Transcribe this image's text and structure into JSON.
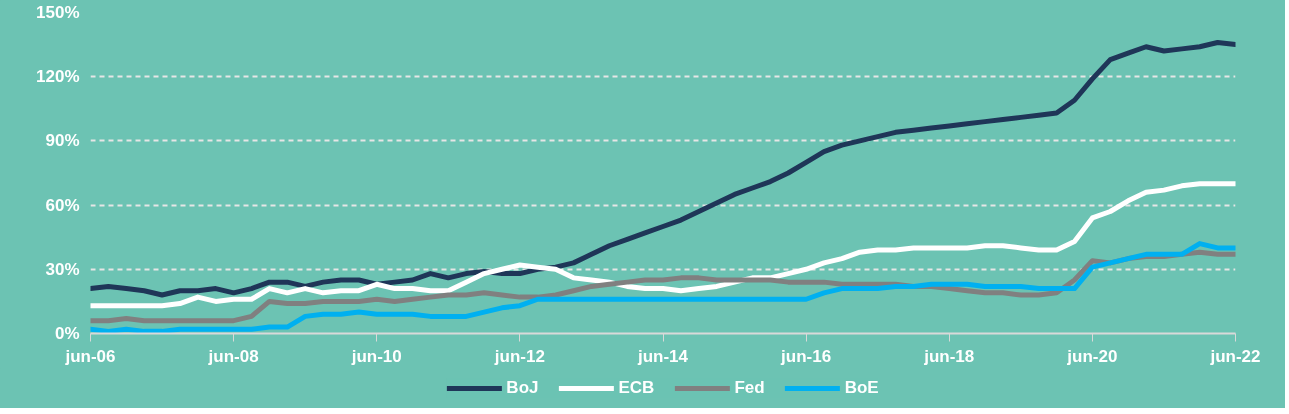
{
  "chart_data": {
    "type": "line",
    "categories": [
      "jun-06",
      null,
      null,
      null,
      null,
      null,
      null,
      null,
      "jun-08",
      null,
      null,
      null,
      null,
      null,
      null,
      null,
      "jun-10",
      null,
      null,
      null,
      null,
      null,
      null,
      null,
      "jun-12",
      null,
      null,
      null,
      null,
      null,
      null,
      null,
      "jun-14",
      null,
      null,
      null,
      null,
      null,
      null,
      null,
      "jun-16",
      null,
      null,
      null,
      null,
      null,
      null,
      null,
      "jun-18",
      null,
      null,
      null,
      null,
      null,
      null,
      null,
      "jun-20",
      null,
      null,
      null,
      null,
      null,
      null,
      null,
      "jun-22"
    ],
    "series": [
      {
        "name": "BoJ",
        "color": "#1f3658",
        "values": [
          21,
          22,
          21,
          20,
          18,
          20,
          20,
          21,
          19,
          21,
          24,
          24,
          22,
          24,
          25,
          25,
          23,
          24,
          25,
          28,
          26,
          28,
          29,
          28,
          28,
          30,
          31,
          33,
          37,
          41,
          44,
          47,
          50,
          53,
          57,
          61,
          65,
          68,
          71,
          75,
          80,
          85,
          88,
          90,
          92,
          94,
          95,
          96,
          97,
          98,
          99,
          100,
          101,
          102,
          103,
          109,
          119,
          128,
          131,
          134,
          132,
          133,
          134,
          136,
          135
        ]
      },
      {
        "name": "ECB",
        "color": "#ffffff",
        "values": [
          13,
          13,
          13,
          13,
          13,
          14,
          17,
          15,
          16,
          16,
          21,
          19,
          21,
          19,
          20,
          20,
          23,
          21,
          21,
          20,
          20,
          24,
          28,
          30,
          32,
          31,
          30,
          26,
          25,
          24,
          22,
          21,
          21,
          20,
          21,
          22,
          24,
          26,
          26,
          28,
          30,
          33,
          35,
          38,
          39,
          39,
          40,
          40,
          40,
          40,
          41,
          41,
          40,
          39,
          39,
          43,
          54,
          57,
          62,
          66,
          67,
          69,
          70,
          70,
          70
        ]
      },
      {
        "name": "Fed",
        "color": "#808080",
        "values": [
          6,
          6,
          7,
          6,
          6,
          6,
          6,
          6,
          6,
          8,
          15,
          14,
          14,
          15,
          15,
          15,
          16,
          15,
          16,
          17,
          18,
          18,
          19,
          18,
          17,
          17,
          18,
          20,
          22,
          23,
          24,
          25,
          25,
          26,
          26,
          25,
          25,
          25,
          25,
          24,
          24,
          24,
          23,
          23,
          23,
          23,
          22,
          22,
          21,
          20,
          19,
          19,
          18,
          18,
          19,
          25,
          34,
          33,
          35,
          36,
          36,
          37,
          38,
          37,
          37
        ]
      },
      {
        "name": "BoE",
        "color": "#00b0f0",
        "values": [
          2,
          1,
          2,
          1,
          1,
          2,
          2,
          2,
          2,
          2,
          3,
          3,
          8,
          9,
          9,
          10,
          9,
          9,
          9,
          8,
          8,
          8,
          10,
          12,
          13,
          16,
          16,
          16,
          16,
          16,
          16,
          16,
          16,
          16,
          16,
          16,
          16,
          16,
          16,
          16,
          16,
          19,
          21,
          21,
          21,
          22,
          22,
          23,
          23,
          23,
          22,
          22,
          22,
          21,
          21,
          21,
          31,
          33,
          35,
          37,
          37,
          37,
          42,
          40,
          40
        ]
      }
    ],
    "ylim": [
      0,
      150
    ],
    "yticks": [
      {
        "value": 0,
        "label": "0%"
      },
      {
        "value": 30,
        "label": "30%"
      },
      {
        "value": 60,
        "label": "60%"
      },
      {
        "value": 90,
        "label": "90%"
      },
      {
        "value": 120,
        "label": "120%"
      },
      {
        "value": 150,
        "label": "150%"
      }
    ],
    "grid": "y",
    "legend": "bottom",
    "line_style": "solid",
    "marker": "none"
  }
}
